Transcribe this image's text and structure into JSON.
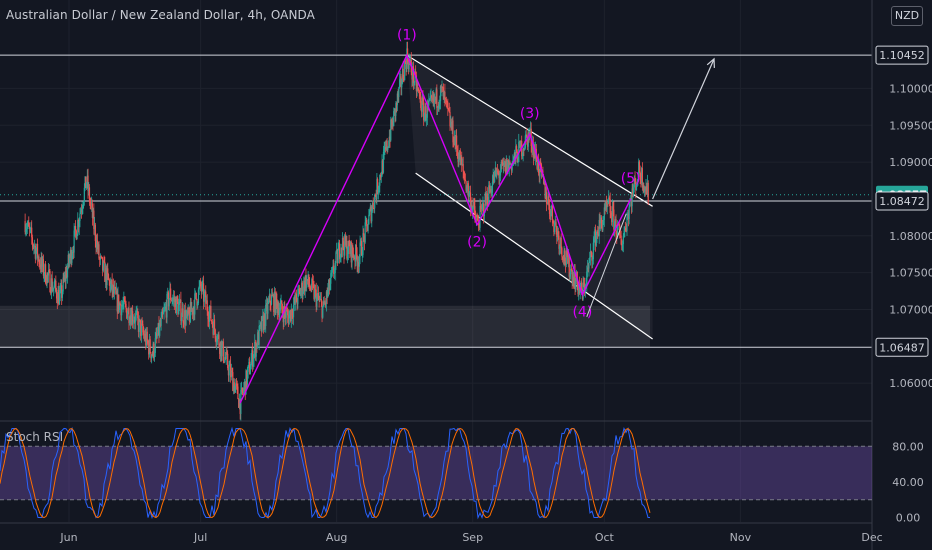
{
  "header": {
    "title": "Australian Dollar / New Zealand Dollar, 4h, OANDA",
    "currency_badge": "NZD"
  },
  "colors": {
    "background": "#131722",
    "grid": "#1e222d",
    "up": "#26a69a",
    "down": "#ef5350",
    "wave": "#d500f9",
    "channel": "#ffffff",
    "stoch_k": "#2962ff",
    "stoch_d": "#ff6d00",
    "stoch_band": "#7e57c2",
    "axis_text": "#b2b5be"
  },
  "chart_data": {
    "type": "candlestick",
    "price_axis": {
      "range": [
        1.055,
        1.112
      ],
      "ticks": [
        "1.10000",
        "1.09500",
        "1.09000",
        "1.08000",
        "1.07500",
        "1.07000",
        "1.06000"
      ]
    },
    "time_axis": {
      "labels": [
        "Jun",
        "Jul",
        "Aug",
        "Sep",
        "Oct",
        "Nov",
        "Dec"
      ]
    },
    "price_labels": [
      {
        "value": 1.10452,
        "text": "1.10452",
        "style": "outline"
      },
      {
        "value": 1.08557,
        "text": "1.08557",
        "style": "current"
      },
      {
        "value": 1.08472,
        "text": "1.08472",
        "style": "outline"
      },
      {
        "value": 1.06487,
        "text": "1.06487",
        "style": "outline"
      }
    ],
    "horizontal_lines": [
      1.10452,
      1.08472,
      1.06487
    ],
    "current_price": 1.08557,
    "support_zone": [
      1.06487,
      1.0705
    ],
    "wave_labels": [
      {
        "label": "(1)",
        "date": "Aug 17",
        "price": 1.1045
      },
      {
        "label": "(2)",
        "date": "Sep 02",
        "price": 1.0815
      },
      {
        "label": "(3)",
        "date": "Sep 14",
        "price": 1.0938
      },
      {
        "label": "(4)",
        "date": "Sep 26",
        "price": 1.072
      },
      {
        "label": "(5)",
        "date": "Oct 07",
        "price": 1.085
      }
    ],
    "wave_path": [
      {
        "date": "Jul 10",
        "price": 1.0573
      },
      {
        "date": "Aug 17",
        "price": 1.1045
      },
      {
        "date": "Sep 02",
        "price": 1.0815
      },
      {
        "date": "Sep 14",
        "price": 1.0938
      },
      {
        "date": "Sep 26",
        "price": 1.072
      },
      {
        "date": "Oct 07",
        "price": 1.085
      }
    ],
    "price_path": [
      [
        "May 22",
        1.082
      ],
      [
        "May 26",
        1.0755
      ],
      [
        "May 30",
        1.0715
      ],
      [
        "Jun 02",
        1.079
      ],
      [
        "Jun 05",
        1.0875
      ],
      [
        "Jun 08",
        1.0765
      ],
      [
        "Jun 12",
        1.071
      ],
      [
        "Jun 16",
        1.069
      ],
      [
        "Jun 20",
        1.064
      ],
      [
        "Jun 24",
        1.072
      ],
      [
        "Jun 28",
        1.0685
      ],
      [
        "Jul 01",
        1.073
      ],
      [
        "Jul 05",
        1.066
      ],
      [
        "Jul 08",
        1.061
      ],
      [
        "Jul 10",
        1.0573
      ],
      [
        "Jul 13",
        1.064
      ],
      [
        "Jul 17",
        1.0715
      ],
      [
        "Jul 21",
        1.069
      ],
      [
        "Jul 25",
        1.074
      ],
      [
        "Jul 29",
        1.07
      ],
      [
        "Aug 02",
        1.079
      ],
      [
        "Aug 06",
        1.077
      ],
      [
        "Aug 10",
        1.086
      ],
      [
        "Aug 14",
        1.096
      ],
      [
        "Aug 17",
        1.1045
      ],
      [
        "Aug 21",
        1.0965
      ],
      [
        "Aug 25",
        1.0995
      ],
      [
        "Aug 29",
        1.0905
      ],
      [
        "Sep 02",
        1.0815
      ],
      [
        "Sep 06",
        1.088
      ],
      [
        "Sep 10",
        1.09
      ],
      [
        "Sep 14",
        1.0938
      ],
      [
        "Sep 18",
        1.085
      ],
      [
        "Sep 22",
        1.077
      ],
      [
        "Sep 26",
        1.072
      ],
      [
        "Sep 29",
        1.08
      ],
      [
        "Oct 02",
        1.084
      ],
      [
        "Oct 05",
        1.079
      ],
      [
        "Oct 07",
        1.085
      ],
      [
        "Oct 09",
        1.089
      ],
      [
        "Oct 11",
        1.0856
      ]
    ],
    "channel": {
      "upper": [
        {
          "date": "Aug 17",
          "price": 1.1045
        },
        {
          "date": "Oct 12",
          "price": 1.084
        }
      ],
      "lower": [
        {
          "date": "Aug 19",
          "price": 1.0885
        },
        {
          "date": "Oct 12",
          "price": 1.066
        }
      ]
    },
    "projection": {
      "from": {
        "date": "Oct 12",
        "price": 1.085
      },
      "to": {
        "date": "Oct 26",
        "price": 1.104
      }
    },
    "indicator": {
      "name": "Stoch RSI",
      "range": [
        -5,
        105
      ],
      "band": [
        20,
        80
      ],
      "ticks": [
        "80.00",
        "40.00",
        "0.00"
      ]
    }
  }
}
